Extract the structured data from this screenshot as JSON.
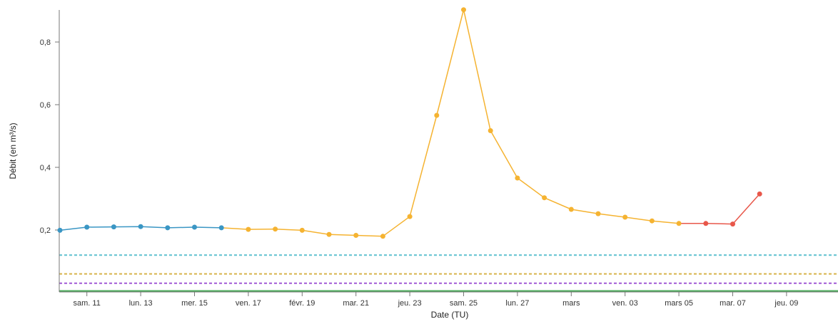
{
  "chart_data": {
    "type": "line",
    "xlabel": "Date (TU)",
    "ylabel": "Débit (en m³/s)",
    "ylim": [
      0,
      0.9
    ],
    "grid": false,
    "x_ticks": [
      {
        "x": 1,
        "label": "sam. 11"
      },
      {
        "x": 3,
        "label": "lun. 13"
      },
      {
        "x": 5,
        "label": "mer. 15"
      },
      {
        "x": 7,
        "label": "ven. 17"
      },
      {
        "x": 9,
        "label": "févr. 19"
      },
      {
        "x": 11,
        "label": "mar. 21"
      },
      {
        "x": 13,
        "label": "jeu. 23"
      },
      {
        "x": 15,
        "label": "sam. 25"
      },
      {
        "x": 17,
        "label": "lun. 27"
      },
      {
        "x": 19,
        "label": "mars"
      },
      {
        "x": 21,
        "label": "ven. 03"
      },
      {
        "x": 23,
        "label": "mars 05"
      },
      {
        "x": 25,
        "label": "mar. 07"
      },
      {
        "x": 27,
        "label": "jeu. 09"
      }
    ],
    "y_ticks": [
      {
        "y": 0.2,
        "label": "0,2"
      },
      {
        "y": 0.4,
        "label": "0,4"
      },
      {
        "y": 0.6,
        "label": "0,6"
      },
      {
        "y": 0.8,
        "label": "0,8"
      }
    ],
    "series": [
      {
        "color": "#3a96c4",
        "points": [
          [
            0,
            0.199
          ],
          [
            1,
            0.209
          ],
          [
            2,
            0.21
          ],
          [
            3,
            0.211
          ],
          [
            4,
            0.207
          ],
          [
            5,
            0.209
          ],
          [
            6,
            0.207
          ]
        ]
      },
      {
        "color": "#f5b331",
        "points": [
          [
            6,
            0.207
          ],
          [
            7,
            0.202
          ],
          [
            8,
            0.203
          ],
          [
            9,
            0.199
          ],
          [
            10,
            0.186
          ],
          [
            11,
            0.183
          ],
          [
            12,
            0.18
          ],
          [
            13,
            0.243
          ],
          [
            14,
            0.566
          ],
          [
            15,
            0.903
          ],
          [
            16,
            0.517
          ],
          [
            17,
            0.366
          ],
          [
            18,
            0.303
          ],
          [
            19,
            0.266
          ],
          [
            20,
            0.252
          ],
          [
            21,
            0.241
          ],
          [
            22,
            0.229
          ],
          [
            23,
            0.221
          ]
        ]
      },
      {
        "color": "#e8574a",
        "points": [
          [
            23,
            0.221
          ],
          [
            24,
            0.221
          ],
          [
            25,
            0.219
          ],
          [
            26,
            0.315
          ]
        ]
      }
    ],
    "thresholds": [
      {
        "y": 0.12,
        "color": "#5fc1cf"
      },
      {
        "y": 0.06,
        "color": "#d8b44a"
      },
      {
        "y": 0.03,
        "color": "#a05ad6"
      },
      {
        "y": 0.002,
        "color": "#4fae5f"
      }
    ]
  }
}
